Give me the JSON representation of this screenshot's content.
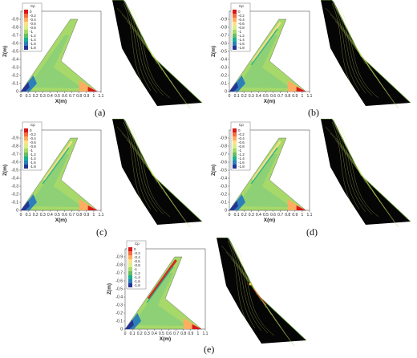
{
  "legend": {
    "title": "Cp",
    "labels": [
      "0",
      "-0.2",
      "-0.4",
      "-0.6",
      "-0.8",
      "-1",
      "-1.2",
      "-1.4",
      "-1.6",
      "-1.8"
    ],
    "colors": [
      "#d7191c",
      "#f46d43",
      "#fdae61",
      "#fee08b",
      "#d9ef8b",
      "#a6d96a",
      "#66bd63",
      "#1aaf8f",
      "#2c7fb8",
      "#253494"
    ]
  },
  "axes": {
    "xlabel": "X(m)",
    "ylabel": "Z(m)",
    "xticks": [
      "0",
      "0.1",
      "0.2",
      "0.3",
      "0.4",
      "0.5",
      "0.6",
      "0.7",
      "0.8",
      "0.9",
      "1",
      "1.1"
    ],
    "yticks": [
      "-0.9",
      "-0.8",
      "-0.7",
      "-0.6",
      "-0.5",
      "-0.4",
      "-0.3",
      "-0.2",
      "-0.1",
      "0"
    ]
  },
  "captions": [
    "(a)",
    "(b)",
    "(c)",
    "(d)",
    "(e)"
  ]
}
